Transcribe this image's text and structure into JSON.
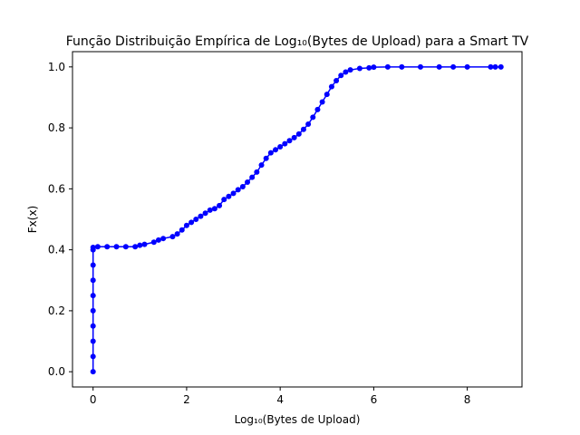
{
  "chart_data": {
    "type": "line",
    "title": "Função Distribuição Empírica de Log₁₀(Bytes de Upload) para a Smart TV",
    "xlabel": "Log₁₀(Bytes de Upload)",
    "ylabel": "Fx(x)",
    "xlim": [
      -0.44,
      9.17
    ],
    "ylim": [
      -0.05,
      1.05
    ],
    "xticks": [
      0,
      2,
      4,
      6,
      8
    ],
    "yticks": [
      0.0,
      0.2,
      0.4,
      0.6,
      0.8,
      1.0
    ],
    "grid": false,
    "series": [
      {
        "color": "#0000ff",
        "marker": "circle",
        "points": [
          [
            0,
            0.0
          ],
          [
            0,
            0.05
          ],
          [
            0,
            0.1
          ],
          [
            0,
            0.15
          ],
          [
            0,
            0.2
          ],
          [
            0,
            0.25
          ],
          [
            0,
            0.3
          ],
          [
            0,
            0.35
          ],
          [
            0,
            0.4
          ],
          [
            0,
            0.408
          ],
          [
            0.1,
            0.41
          ],
          [
            0.3,
            0.41
          ],
          [
            0.5,
            0.41
          ],
          [
            0.7,
            0.41
          ],
          [
            0.9,
            0.41
          ],
          [
            1.0,
            0.415
          ],
          [
            1.1,
            0.418
          ],
          [
            1.3,
            0.425
          ],
          [
            1.4,
            0.432
          ],
          [
            1.5,
            0.437
          ],
          [
            1.7,
            0.443
          ],
          [
            1.8,
            0.452
          ],
          [
            1.9,
            0.465
          ],
          [
            2.0,
            0.48
          ],
          [
            2.1,
            0.49
          ],
          [
            2.2,
            0.5
          ],
          [
            2.3,
            0.51
          ],
          [
            2.4,
            0.52
          ],
          [
            2.5,
            0.53
          ],
          [
            2.6,
            0.535
          ],
          [
            2.7,
            0.545
          ],
          [
            2.8,
            0.565
          ],
          [
            2.9,
            0.575
          ],
          [
            3.0,
            0.585
          ],
          [
            3.1,
            0.597
          ],
          [
            3.2,
            0.607
          ],
          [
            3.3,
            0.622
          ],
          [
            3.4,
            0.638
          ],
          [
            3.5,
            0.655
          ],
          [
            3.6,
            0.678
          ],
          [
            3.7,
            0.7
          ],
          [
            3.8,
            0.718
          ],
          [
            3.9,
            0.728
          ],
          [
            4.0,
            0.738
          ],
          [
            4.1,
            0.748
          ],
          [
            4.2,
            0.758
          ],
          [
            4.3,
            0.768
          ],
          [
            4.4,
            0.78
          ],
          [
            4.5,
            0.795
          ],
          [
            4.6,
            0.812
          ],
          [
            4.7,
            0.835
          ],
          [
            4.8,
            0.86
          ],
          [
            4.9,
            0.885
          ],
          [
            5.0,
            0.91
          ],
          [
            5.1,
            0.935
          ],
          [
            5.2,
            0.955
          ],
          [
            5.3,
            0.972
          ],
          [
            5.4,
            0.983
          ],
          [
            5.5,
            0.99
          ],
          [
            5.7,
            0.995
          ],
          [
            5.9,
            0.997
          ],
          [
            6.0,
            0.999
          ],
          [
            6.3,
            1.0
          ],
          [
            6.6,
            1.0
          ],
          [
            7.0,
            1.0
          ],
          [
            7.4,
            1.0
          ],
          [
            7.7,
            1.0
          ],
          [
            8.0,
            1.0
          ],
          [
            8.5,
            1.0
          ],
          [
            8.6,
            1.0
          ],
          [
            8.72,
            1.0
          ]
        ]
      }
    ]
  }
}
